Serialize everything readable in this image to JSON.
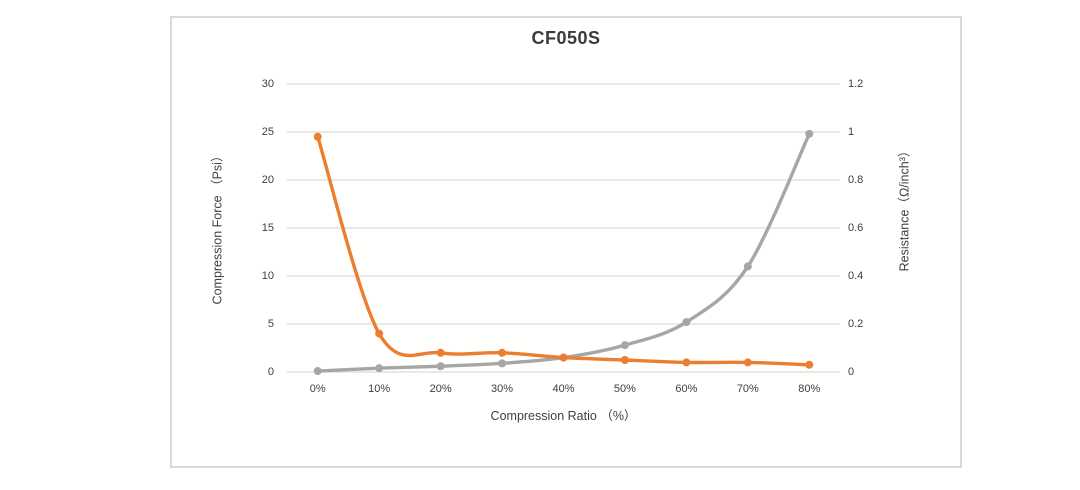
{
  "chart": {
    "title": "CF050S",
    "left_axis_title": "Compression Force （Psi）",
    "right_axis_title": "Resistance（Ω/inch³）",
    "x_axis_title": "Compression Ratio （%）"
  },
  "chart_data": {
    "type": "line",
    "title": "CF050S",
    "categories": [
      "0%",
      "10%",
      "20%",
      "30%",
      "40%",
      "50%",
      "60%",
      "70%",
      "80%"
    ],
    "series": [
      {
        "name": "Compression Force (Psi)",
        "axis": "left",
        "color": "#a6a6a6",
        "marker": "circle",
        "values": [
          0.1,
          0.4,
          0.6,
          0.9,
          1.5,
          2.8,
          5.2,
          11,
          24.8
        ]
      },
      {
        "name": "Resistance (Ω/inch³)",
        "axis": "right",
        "color": "#ed7d31",
        "marker": "circle",
        "values": [
          0.98,
          0.16,
          0.08,
          0.08,
          0.06,
          0.05,
          0.04,
          0.04,
          0.03
        ]
      }
    ],
    "left_axis": {
      "label": "Compression Force （Psi）",
      "min": 0,
      "max": 30,
      "ticks": [
        0,
        5,
        10,
        15,
        20,
        25,
        30
      ],
      "tick_labels": [
        "0",
        "5",
        "10",
        "15",
        "20",
        "25",
        "30"
      ]
    },
    "right_axis": {
      "label": "Resistance（Ω/inch³）",
      "min": 0,
      "max": 1.2,
      "ticks": [
        0,
        0.2,
        0.4,
        0.6,
        0.8,
        1,
        1.2
      ],
      "tick_labels": [
        "0",
        "0.2",
        "0.4",
        "0.6",
        "0.8",
        "1",
        "1.2"
      ]
    },
    "x_axis": {
      "label": "Compression Ratio （%）"
    },
    "legend": "none",
    "grid": true,
    "smooth_lines": true,
    "gridline_color": "#d9d9d9",
    "text_color": "#404040"
  }
}
